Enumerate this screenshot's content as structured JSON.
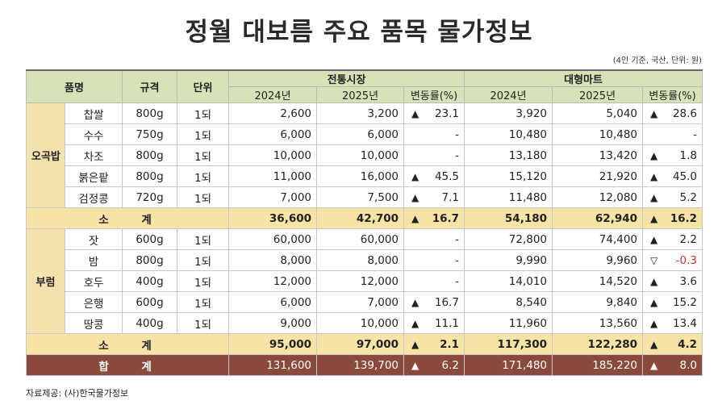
{
  "title": "정월 대보름 주요 품목 물가정보",
  "unit_note": "(4인 기준, 국산, 단위: 원)",
  "source": "자료제공: (사)한국물가정보",
  "headers": {
    "item": "품명",
    "spec": "규격",
    "unit": "단위",
    "market": "전통시장",
    "mart": "대형마트",
    "y2024": "2024년",
    "y2025": "2025년",
    "change": "변동률(%)"
  },
  "groups": [
    {
      "category": "오곡밥",
      "rows": [
        {
          "name": "찹쌀",
          "spec": "800g",
          "unit": "1되",
          "m24": "2,600",
          "m25": "3,200",
          "mdir": "up",
          "mchg": "23.1",
          "t24": "3,920",
          "t25": "5,040",
          "tdir": "up",
          "tchg": "28.6"
        },
        {
          "name": "수수",
          "spec": "750g",
          "unit": "1되",
          "m24": "6,000",
          "m25": "6,000",
          "mdir": "none",
          "mchg": "-",
          "t24": "10,480",
          "t25": "10,480",
          "tdir": "none",
          "tchg": "-"
        },
        {
          "name": "차조",
          "spec": "800g",
          "unit": "1되",
          "m24": "10,000",
          "m25": "10,000",
          "mdir": "none",
          "mchg": "-",
          "t24": "13,180",
          "t25": "13,420",
          "tdir": "up",
          "tchg": "1.8"
        },
        {
          "name": "붉은팥",
          "spec": "800g",
          "unit": "1되",
          "m24": "11,000",
          "m25": "16,000",
          "mdir": "up",
          "mchg": "45.5",
          "t24": "15,120",
          "t25": "21,920",
          "tdir": "up",
          "tchg": "45.0"
        },
        {
          "name": "검정콩",
          "spec": "720g",
          "unit": "1되",
          "m24": "7,000",
          "m25": "7,500",
          "mdir": "up",
          "mchg": "7.1",
          "t24": "11,480",
          "t25": "12,080",
          "tdir": "up",
          "tchg": "5.2"
        }
      ],
      "subtotal": {
        "label": "소 계",
        "m24": "36,600",
        "m25": "42,700",
        "mdir": "up",
        "mchg": "16.7",
        "t24": "54,180",
        "t25": "62,940",
        "tdir": "up",
        "tchg": "16.2"
      }
    },
    {
      "category": "부럼",
      "rows": [
        {
          "name": "잣",
          "spec": "600g",
          "unit": "1되",
          "m24": "60,000",
          "m25": "60,000",
          "mdir": "none",
          "mchg": "-",
          "t24": "72,800",
          "t25": "74,400",
          "tdir": "up",
          "tchg": "2.2"
        },
        {
          "name": "밤",
          "spec": "800g",
          "unit": "1되",
          "m24": "8,000",
          "m25": "8,000",
          "mdir": "none",
          "mchg": "-",
          "t24": "9,990",
          "t25": "9,960",
          "tdir": "down",
          "tchg": "-0.3"
        },
        {
          "name": "호두",
          "spec": "400g",
          "unit": "1되",
          "m24": "12,000",
          "m25": "12,000",
          "mdir": "none",
          "mchg": "-",
          "t24": "14,010",
          "t25": "14,520",
          "tdir": "up",
          "tchg": "3.6"
        },
        {
          "name": "은행",
          "spec": "600g",
          "unit": "1되",
          "m24": "6,000",
          "m25": "7,000",
          "mdir": "up",
          "mchg": "16.7",
          "t24": "8,540",
          "t25": "9,840",
          "tdir": "up",
          "tchg": "15.2"
        },
        {
          "name": "땅콩",
          "spec": "400g",
          "unit": "1되",
          "m24": "9,000",
          "m25": "10,000",
          "mdir": "up",
          "mchg": "11.1",
          "t24": "11,960",
          "t25": "13,560",
          "tdir": "up",
          "tchg": "13.4"
        }
      ],
      "subtotal": {
        "label": "소 계",
        "m24": "95,000",
        "m25": "97,000",
        "mdir": "up",
        "mchg": "2.1",
        "t24": "117,300",
        "t25": "122,280",
        "tdir": "up",
        "tchg": "4.2"
      }
    }
  ],
  "total": {
    "label": "합 계",
    "m24": "131,600",
    "m25": "139,700",
    "mdir": "up",
    "mchg": "6.2",
    "t24": "171,480",
    "t25": "185,220",
    "tdir": "up",
    "tchg": "8.0"
  },
  "arrows": {
    "up": "▲",
    "down": "▽",
    "none": ""
  }
}
